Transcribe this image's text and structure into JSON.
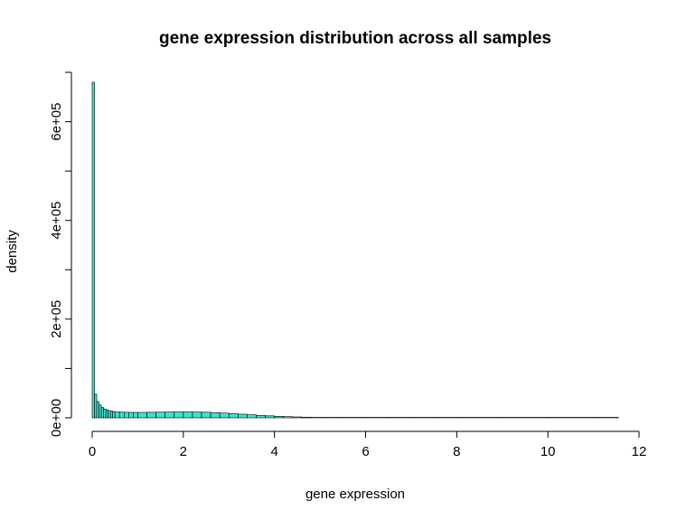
{
  "chart_data": {
    "type": "bar",
    "title": "gene expression distribution across all samples",
    "xlabel": "gene expression",
    "ylabel": "density",
    "xlim": [
      0,
      12
    ],
    "ylim": [
      0,
      700000
    ],
    "x_ticks": [
      0,
      2,
      4,
      6,
      8,
      10,
      12
    ],
    "x_tick_labels": [
      "0",
      "2",
      "4",
      "6",
      "8",
      "10",
      "12"
    ],
    "y_ticks": [
      0,
      100000,
      200000,
      300000,
      400000,
      500000,
      600000,
      700000
    ],
    "y_tick_labels": [
      "0e+00",
      "",
      "2e+05",
      "",
      "4e+05",
      "",
      "6e+05",
      ""
    ],
    "grid": false,
    "legend": "none",
    "bar_color": "#40E0D0",
    "bar_edge_color": "#000000",
    "bin_width": 0.05,
    "bin_starts": [
      0,
      0.05,
      0.1,
      0.15,
      0.2,
      0.25,
      0.3,
      0.35,
      0.4,
      0.45,
      0.5,
      0.6,
      0.7,
      0.8,
      0.9,
      1.0,
      1.2,
      1.4,
      1.6,
      1.8,
      2.0,
      2.2,
      2.4,
      2.6,
      2.8,
      3.0,
      3.2,
      3.4,
      3.6,
      3.8,
      4.0,
      4.2,
      4.4,
      4.6,
      4.8,
      5.0,
      5.5,
      6.0,
      6.5,
      7.0,
      7.5,
      8.0,
      9.0,
      10.0,
      11.0,
      11.5
    ],
    "values": [
      680000,
      48000,
      33000,
      26000,
      21000,
      18000,
      16000,
      14500,
      13500,
      12800,
      12000,
      11500,
      11200,
      11000,
      11000,
      11000,
      11200,
      11500,
      11800,
      12000,
      12000,
      11800,
      11300,
      10600,
      9600,
      8500,
      7300,
      6100,
      5000,
      4000,
      3100,
      2400,
      1800,
      1300,
      900,
      600,
      400,
      250,
      150,
      100,
      60,
      40,
      20,
      10,
      5,
      2
    ]
  }
}
